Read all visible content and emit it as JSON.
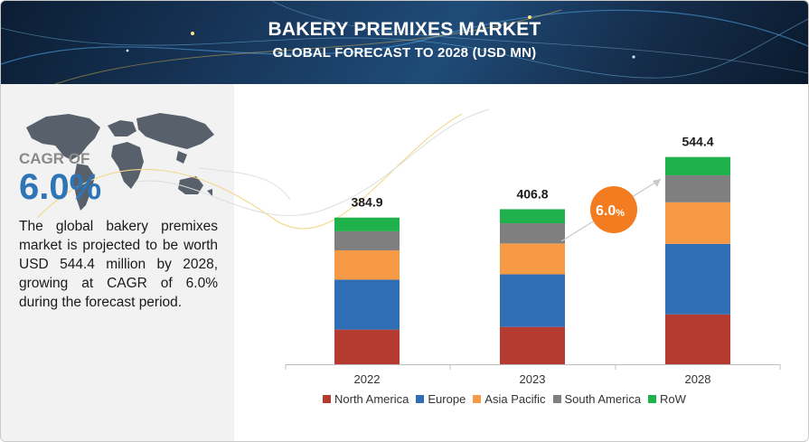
{
  "header": {
    "title": "BAKERY PREMIXES MARKET",
    "subtitle": "GLOBAL FORECAST TO 2028 (USD MN)"
  },
  "summary": {
    "cagr_label": "CAGR OF",
    "cagr_value": "6.0%",
    "description": "The global bakery premixes market is projected to be worth USD 544.4 million by 2028, growing at CAGR of 6.0% during the forecast period."
  },
  "colors": {
    "north_america": "#b53a30",
    "europe": "#2f6eb5",
    "asia_pacific": "#f79a46",
    "south_america": "#7f7f7f",
    "row": "#1fb14b",
    "badge": "#f47c20"
  },
  "chart_data": {
    "type": "bar",
    "stacked": true,
    "title": "BAKERY PREMIXES MARKET",
    "categories": [
      "2022",
      "2023",
      "2028"
    ],
    "totals": [
      "384.9",
      "406.8",
      "544.4"
    ],
    "series": [
      {
        "name": "North America",
        "values": [
          91,
          98,
          131
        ]
      },
      {
        "name": "Europe",
        "values": [
          131,
          138,
          185
        ]
      },
      {
        "name": "Asia Pacific",
        "values": [
          77,
          81,
          109
        ]
      },
      {
        "name": "South America",
        "values": [
          50,
          53,
          71
        ]
      },
      {
        "name": "RoW",
        "values": [
          36,
          37,
          48
        ]
      }
    ],
    "growth_badge": "6.0",
    "growth_badge_unit": "%",
    "ylim": [
      0,
      600
    ]
  }
}
